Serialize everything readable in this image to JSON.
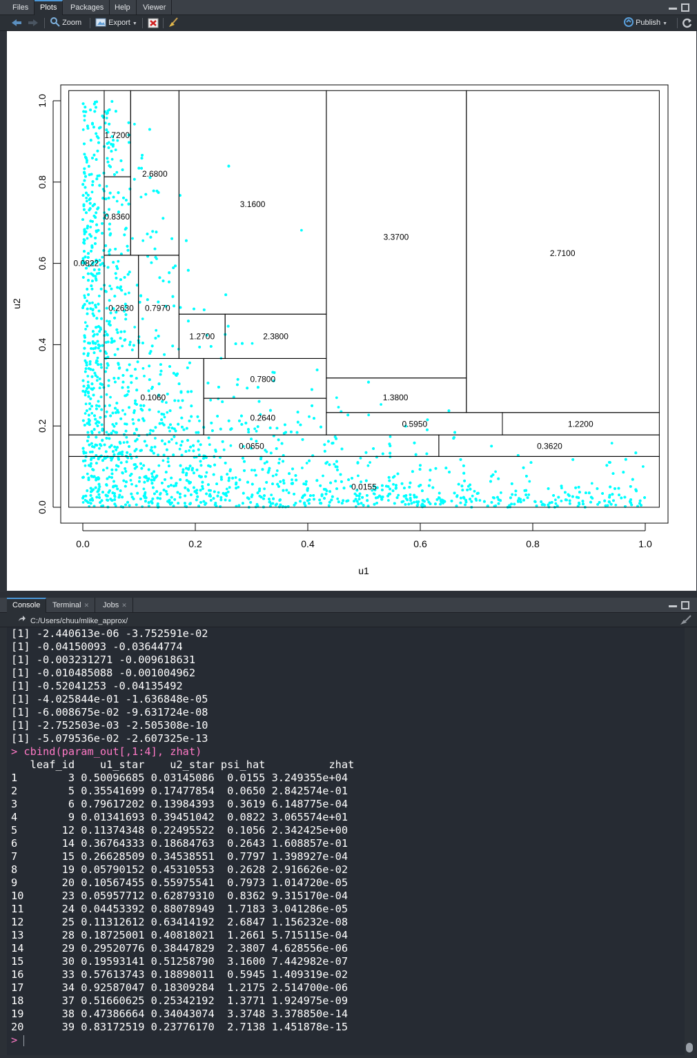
{
  "plots_pane": {
    "tabs": [
      {
        "label": "Files",
        "active": false
      },
      {
        "label": "Plots",
        "active": true
      },
      {
        "label": "Packages",
        "active": false
      },
      {
        "label": "Help",
        "active": false
      },
      {
        "label": "Viewer",
        "active": false
      }
    ],
    "toolbar": {
      "zoom_label": "Zoom",
      "export_label": "Export",
      "publish_label": "Publish"
    }
  },
  "colors": {
    "points": "#00ffff",
    "accent": "#4c98d8",
    "pane_bg": "#2b3036",
    "console_text": "#ffffff",
    "console_cmd": "#ff79c6"
  },
  "chart_data": {
    "type": "scatter",
    "xlabel": "u1",
    "ylabel": "u2",
    "xlim": [
      0,
      1
    ],
    "ylim": [
      0,
      1
    ],
    "x_ticks": [
      "0.0",
      "0.2",
      "0.4",
      "0.6",
      "0.8",
      "1.0"
    ],
    "y_ticks": [
      "0.0",
      "0.2",
      "0.4",
      "0.6",
      "0.8",
      "1.0"
    ],
    "point_color": "#00ffff",
    "partition_rects": [
      {
        "x0": -0.025,
        "x1": 1.025,
        "y0": 0.0,
        "y1": 0.125
      },
      {
        "x0": -0.025,
        "x1": 0.633,
        "y0": 0.125,
        "y1": 0.178
      },
      {
        "x0": 0.633,
        "x1": 1.025,
        "y0": 0.125,
        "y1": 0.178
      },
      {
        "x0": 0.038,
        "x1": 0.215,
        "y0": 0.178,
        "y1": 0.366
      },
      {
        "x0": 0.215,
        "x1": 0.433,
        "y0": 0.178,
        "y1": 0.268
      },
      {
        "x0": 0.215,
        "x1": 0.433,
        "y0": 0.268,
        "y1": 0.366
      },
      {
        "x0": 0.433,
        "x1": 0.746,
        "y0": 0.178,
        "y1": 0.233
      },
      {
        "x0": 0.746,
        "x1": 1.025,
        "y0": 0.178,
        "y1": 0.233
      },
      {
        "x0": 0.433,
        "x1": 0.682,
        "y0": 0.233,
        "y1": 0.318
      },
      {
        "x0": 0.038,
        "x1": 0.099,
        "y0": 0.366,
        "y1": 0.62
      },
      {
        "x0": 0.099,
        "x1": 0.171,
        "y0": 0.366,
        "y1": 0.62
      },
      {
        "x0": 0.171,
        "x1": 0.253,
        "y0": 0.366,
        "y1": 0.475
      },
      {
        "x0": 0.253,
        "x1": 0.433,
        "y0": 0.366,
        "y1": 0.475
      },
      {
        "x0": 0.038,
        "x1": 0.085,
        "y0": 0.62,
        "y1": 0.813
      },
      {
        "x0": 0.038,
        "x1": 0.085,
        "y0": 0.813,
        "y1": 1.025
      },
      {
        "x0": 0.085,
        "x1": 0.171,
        "y0": 0.62,
        "y1": 1.025
      },
      {
        "x0": 0.171,
        "x1": 0.433,
        "y0": 0.475,
        "y1": 1.025
      },
      {
        "x0": 0.433,
        "x1": 0.682,
        "y0": 0.318,
        "y1": 1.025
      },
      {
        "x0": 0.682,
        "x1": 1.025,
        "y0": 0.233,
        "y1": 1.025
      },
      {
        "x0": -0.025,
        "x1": 0.038,
        "y0": 0.178,
        "y1": 1.025
      }
    ],
    "cell_labels": [
      {
        "text": "0.0155",
        "x": 0.5,
        "y": 0.05
      },
      {
        "text": "0.0650",
        "x": 0.3,
        "y": 0.15
      },
      {
        "text": "0.3620",
        "x": 0.83,
        "y": 0.15
      },
      {
        "text": "0.1060",
        "x": 0.125,
        "y": 0.27
      },
      {
        "text": "0.2640",
        "x": 0.32,
        "y": 0.22
      },
      {
        "text": "0.7800",
        "x": 0.32,
        "y": 0.315
      },
      {
        "text": "0.5950",
        "x": 0.59,
        "y": 0.205
      },
      {
        "text": "1.2200",
        "x": 0.885,
        "y": 0.205
      },
      {
        "text": "1.3800",
        "x": 0.556,
        "y": 0.27
      },
      {
        "text": "0.2630",
        "x": 0.068,
        "y": 0.49
      },
      {
        "text": "0.7970",
        "x": 0.133,
        "y": 0.49
      },
      {
        "text": "1.2700",
        "x": 0.212,
        "y": 0.42
      },
      {
        "text": "2.3800",
        "x": 0.343,
        "y": 0.42
      },
      {
        "text": "0.8360",
        "x": 0.061,
        "y": 0.715
      },
      {
        "text": "1.7200",
        "x": 0.061,
        "y": 0.915
      },
      {
        "text": "2.6800",
        "x": 0.128,
        "y": 0.82
      },
      {
        "text": "3.1600",
        "x": 0.302,
        "y": 0.745
      },
      {
        "text": "3.3700",
        "x": 0.557,
        "y": 0.665
      },
      {
        "text": "2.7100",
        "x": 0.853,
        "y": 0.625
      },
      {
        "text": "0.0822",
        "x": 0.006,
        "y": 0.6
      }
    ]
  },
  "console_pane": {
    "tabs": [
      {
        "label": "Console",
        "active": true,
        "closable": false
      },
      {
        "label": "Terminal",
        "active": false,
        "closable": true
      },
      {
        "label": "Jobs",
        "active": false,
        "closable": true
      }
    ],
    "path": "C:/Users/chuu/mlike_approx/",
    "output_lines": [
      "[1] -2.440613e-06 -3.752591e-02",
      "[1] -0.04150093 -0.03644774",
      "[1] -0.003231271 -0.009618631",
      "[1] -0.010485088 -0.001004962",
      "[1] -0.52041253 -0.04135492",
      "[1] -4.025844e-01 -1.636848e-05",
      "[1] -6.008675e-02 -9.631724e-08",
      "[1] -2.752503e-03 -2.505308e-10",
      "[1] -5.079536e-02 -2.607325e-13"
    ],
    "command": "> cbind(param_out[,1:4], zhat)",
    "table_header": "   leaf_id    u1_star    u2_star psi_hat          zhat",
    "table_rows": [
      "1        3 0.50096685 0.03145086  0.0155 3.249355e+04",
      "2        5 0.35541699 0.17477854  0.0650 2.842574e-01",
      "3        6 0.79617202 0.13984393  0.3619 6.148775e-04",
      "4        9 0.01341693 0.39451042  0.0822 3.065574e+01",
      "5       12 0.11374348 0.22495522  0.1056 2.342425e+00",
      "6       14 0.36764333 0.18684763  0.2643 1.608857e-01",
      "7       15 0.26628509 0.34538551  0.7797 1.398927e-04",
      "8       19 0.05790152 0.45310553  0.2628 2.916626e-02",
      "9       20 0.10567455 0.55975541  0.7973 1.014720e-05",
      "10      23 0.05957712 0.62879310  0.8362 9.315170e-04",
      "11      24 0.04453392 0.88078949  1.7183 3.041286e-05",
      "12      25 0.11312612 0.63414192  2.6847 1.156232e-08",
      "13      28 0.18725001 0.40818021  1.2661 5.715115e-04",
      "14      29 0.29520776 0.38447829  2.3807 4.628556e-06",
      "15      30 0.19593141 0.51258790  3.1600 7.442982e-07",
      "16      33 0.57613743 0.18898011  0.5945 1.409319e-02",
      "17      34 0.92587047 0.18309284  1.2175 2.514700e-06",
      "18      37 0.51660625 0.25342192  1.3771 1.924975e-09",
      "19      38 0.47386664 0.34043074  3.3748 3.378850e-14",
      "20      39 0.83172519 0.23776170  2.7138 1.451878e-15"
    ],
    "prompt": "> "
  }
}
